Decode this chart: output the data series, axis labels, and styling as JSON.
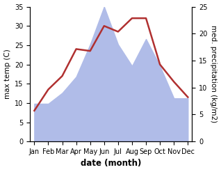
{
  "months": [
    "Jan",
    "Feb",
    "Mar",
    "Apr",
    "May",
    "Jun",
    "Jul",
    "Aug",
    "Sep",
    "Oct",
    "Nov",
    "Dec"
  ],
  "temp": [
    8,
    13.5,
    17,
    24,
    23.5,
    30,
    28.5,
    32,
    32,
    20,
    15.5,
    11.5
  ],
  "precip": [
    7,
    7,
    9,
    12,
    18,
    25,
    18,
    14,
    19,
    14,
    8,
    8
  ],
  "temp_color": "#b03030",
  "precip_color": "#b0bce8",
  "xlabel": "date (month)",
  "ylabel_left": "max temp (C)",
  "ylabel_right": "med. precipitation (kg/m2)",
  "ylim_left": [
    0,
    35
  ],
  "ylim_right": [
    0,
    25
  ],
  "background_color": "#ffffff",
  "line_width": 1.8,
  "xlabel_fontsize": 8.5,
  "ylabel_fontsize": 7.5,
  "tick_fontsize": 7
}
